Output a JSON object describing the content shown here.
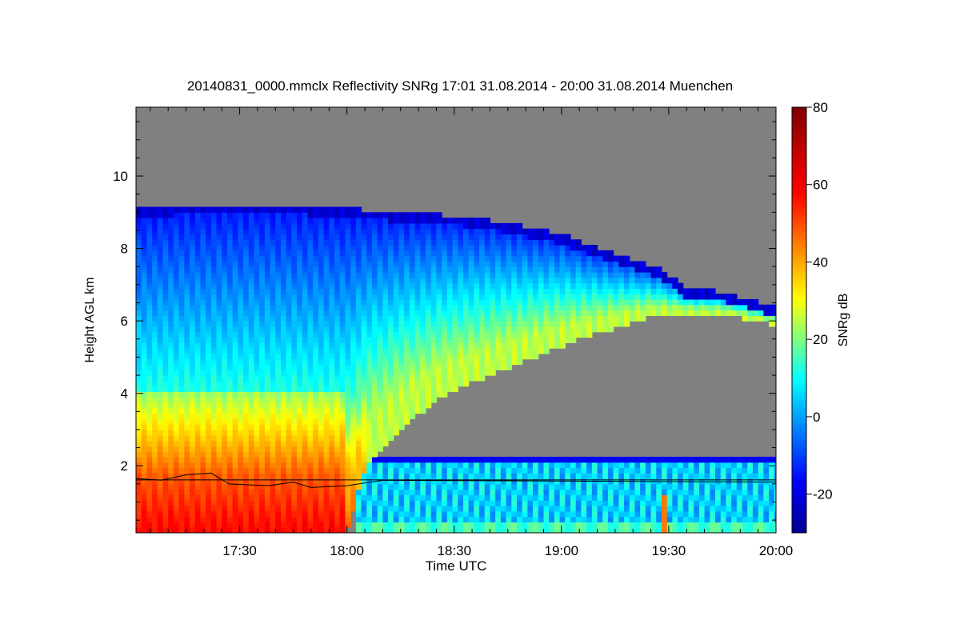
{
  "chart_data": {
    "type": "heatmap",
    "title": "20140831_0000.mmclx Reflectivity SNRg   17:01 31.08.2014 - 20:00 31.08.2014 Muenchen",
    "xlabel": "Time UTC",
    "ylabel": "Height AGL km",
    "colorbar_label": "SNRg dB",
    "x_range_minutes_utc": [
      1021,
      1200
    ],
    "x_ticks": [
      {
        "label": "17:30",
        "minutes": 1050
      },
      {
        "label": "18:00",
        "minutes": 1080
      },
      {
        "label": "18:30",
        "minutes": 1110
      },
      {
        "label": "19:00",
        "minutes": 1140
      },
      {
        "label": "19:30",
        "minutes": 1170
      },
      {
        "label": "20:00",
        "minutes": 1200
      }
    ],
    "ylim": [
      0.15,
      11.9
    ],
    "y_ticks": [
      2,
      4,
      6,
      8,
      10
    ],
    "colorbar_range": [
      -30,
      80
    ],
    "colorbar_ticks": [
      -20,
      0,
      20,
      40,
      60,
      80
    ],
    "background_color": "#808080",
    "cloud_top_km": [
      {
        "minutes": 1021,
        "top": 9.1
      },
      {
        "minutes": 1035,
        "top": 9.2
      },
      {
        "minutes": 1050,
        "top": 9.2
      },
      {
        "minutes": 1065,
        "top": 9.2
      },
      {
        "minutes": 1080,
        "top": 9.1
      },
      {
        "minutes": 1095,
        "top": 9.0
      },
      {
        "minutes": 1110,
        "top": 8.9
      },
      {
        "minutes": 1125,
        "top": 8.7
      },
      {
        "minutes": 1140,
        "top": 8.4
      },
      {
        "minutes": 1150,
        "top": 8.0
      },
      {
        "minutes": 1160,
        "top": 7.7
      },
      {
        "minutes": 1168,
        "top": 7.4
      },
      {
        "minutes": 1175,
        "top": 6.9
      },
      {
        "minutes": 1185,
        "top": 6.8
      },
      {
        "minutes": 1200,
        "top": 6.4
      }
    ],
    "upper_cloud_base_km": [
      {
        "minutes": 1021,
        "base": 0.15
      },
      {
        "minutes": 1080,
        "base": 0.15
      },
      {
        "minutes": 1085,
        "base": 1.9
      },
      {
        "minutes": 1095,
        "base": 3.0
      },
      {
        "minutes": 1105,
        "base": 3.8
      },
      {
        "minutes": 1115,
        "base": 4.3
      },
      {
        "minutes": 1125,
        "base": 4.7
      },
      {
        "minutes": 1135,
        "base": 5.1
      },
      {
        "minutes": 1145,
        "base": 5.5
      },
      {
        "minutes": 1155,
        "base": 5.8
      },
      {
        "minutes": 1165,
        "base": 6.1
      },
      {
        "minutes": 1175,
        "base": 6.2
      },
      {
        "minutes": 1185,
        "base": 6.2
      },
      {
        "minutes": 1200,
        "base": 5.9
      }
    ],
    "lower_layer_top_km": 2.3,
    "boundary_line_km": [
      {
        "minutes": 1021,
        "h": 1.65
      },
      {
        "minutes": 1028,
        "h": 1.6
      },
      {
        "minutes": 1035,
        "h": 1.75
      },
      {
        "minutes": 1042,
        "h": 1.8
      },
      {
        "minutes": 1047,
        "h": 1.5
      },
      {
        "minutes": 1058,
        "h": 1.45
      },
      {
        "minutes": 1065,
        "h": 1.55
      },
      {
        "minutes": 1070,
        "h": 1.4
      },
      {
        "minutes": 1080,
        "h": 1.45
      },
      {
        "minutes": 1090,
        "h": 1.6
      },
      {
        "minutes": 1200,
        "h": 1.55
      }
    ]
  }
}
